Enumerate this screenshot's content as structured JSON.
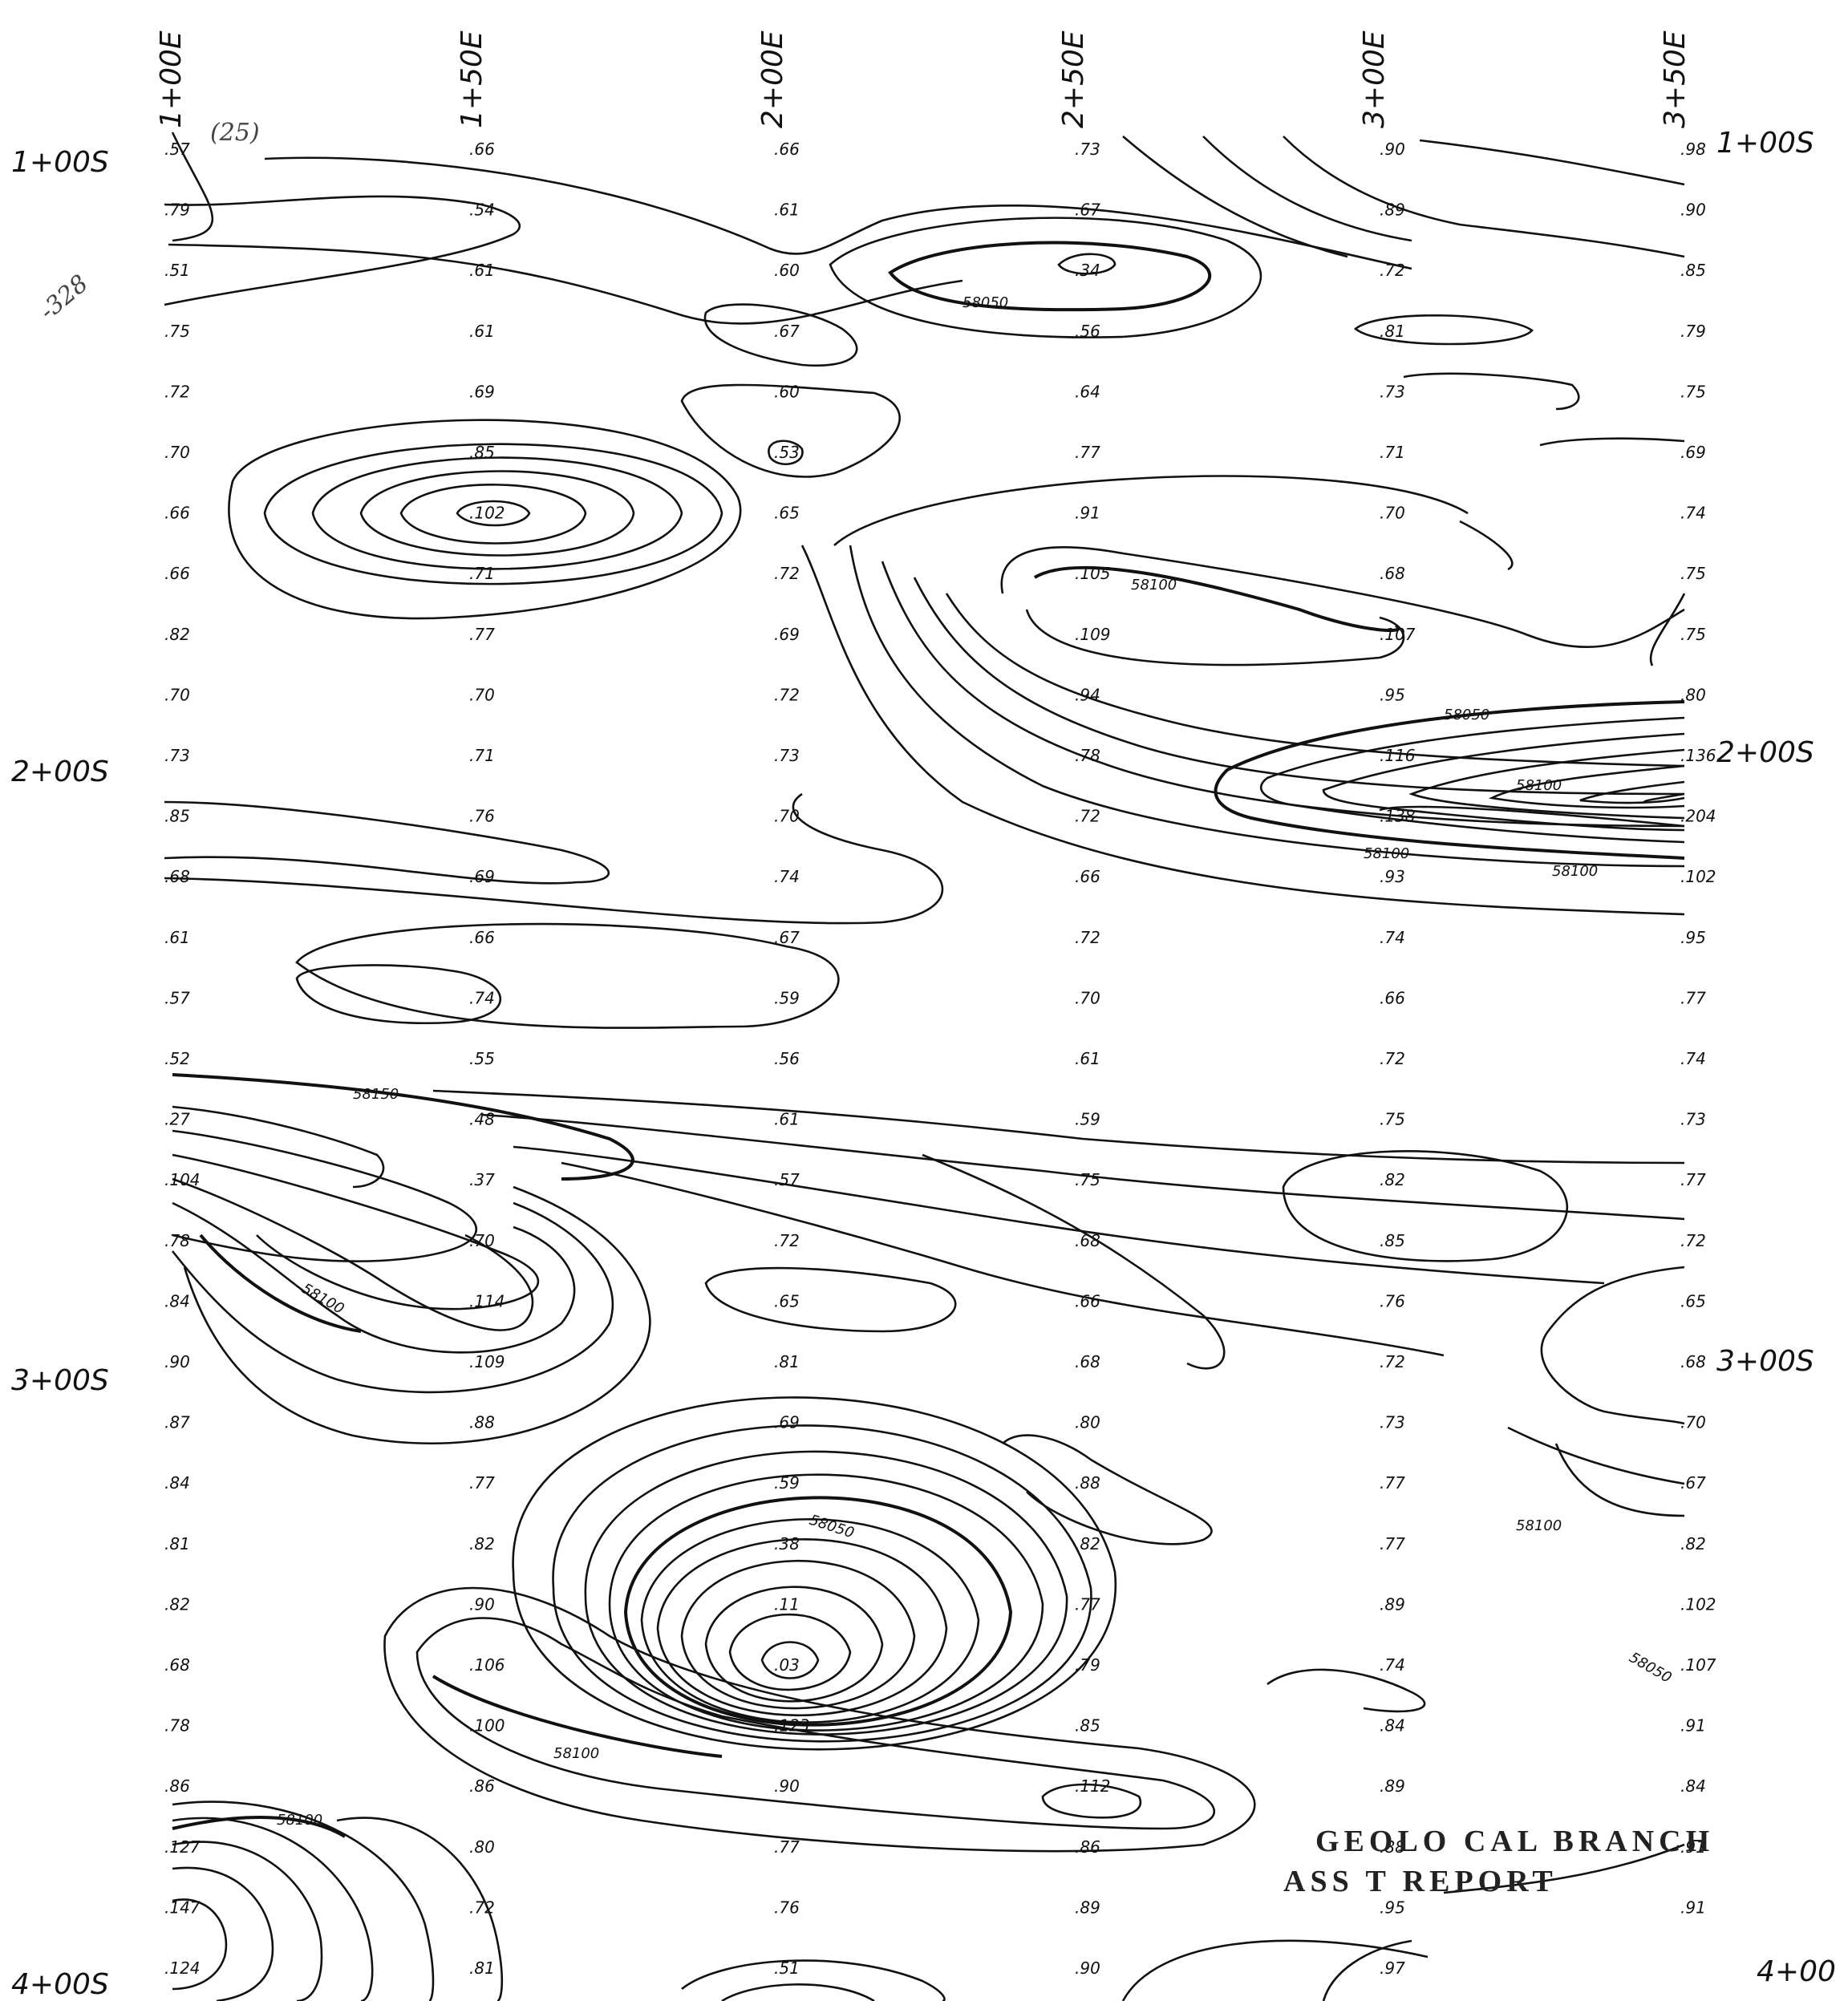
{
  "map": {
    "easting_labels": [
      "1+00E",
      "1+50E",
      "2+00E",
      "2+50E",
      "3+00E",
      "3+50E"
    ],
    "northing_labels_left": [
      "1+00S",
      "2+00S",
      "3+00S",
      "4+00S"
    ],
    "northing_labels_right": [
      "1+00S",
      "2+00S",
      "3+00S",
      "4+00"
    ],
    "handwritten_notes": [
      "(25)",
      "-328"
    ],
    "stamp_lines": [
      "GEOLO  CAL BRANCH",
      "ASS        T REPORT"
    ],
    "contour_labels": [
      "58050",
      "58100",
      "58050",
      "58100",
      "58100",
      "58150",
      "58100",
      "58050",
      "58100",
      "58050",
      "58100",
      "58100",
      "58100"
    ],
    "readings": [
      [
        ".57",
        ".79",
        ".51",
        ".75",
        ".72",
        ".70",
        ".66",
        ".66",
        ".82",
        ".70",
        ".73",
        ".85",
        ".68",
        ".61",
        ".57",
        ".52",
        ".27",
        ".104",
        ".78",
        ".84",
        ".90",
        ".87",
        ".84",
        ".81",
        ".82",
        ".68",
        ".78",
        ".86",
        ".127",
        ".147",
        ".124"
      ],
      [
        ".66",
        ".54",
        ".61",
        ".61",
        ".69",
        ".85",
        ".102",
        ".71",
        ".77",
        ".70",
        ".71",
        ".76",
        ".69",
        ".66",
        ".74",
        ".55",
        ".48",
        ".37",
        ".70",
        ".114",
        ".109",
        ".88",
        ".77",
        ".82",
        ".90",
        ".106",
        ".100",
        ".86",
        ".80",
        ".72",
        ".81"
      ],
      [
        ".66",
        ".61",
        ".60",
        ".67",
        ".60",
        ".53",
        ".65",
        ".72",
        ".69",
        ".72",
        ".73",
        ".70",
        ".74",
        ".67",
        ".59",
        ".56",
        ".61",
        ".57",
        ".72",
        ".65",
        ".81",
        ".69",
        ".59",
        ".38",
        ".11",
        ".03",
        ".123",
        ".90",
        ".77",
        ".76",
        ".51"
      ],
      [
        ".73",
        ".67",
        ".34",
        ".56",
        ".64",
        ".77",
        ".91",
        ".105",
        ".109",
        ".94",
        ".78",
        ".72",
        ".66",
        ".72",
        ".70",
        ".61",
        ".59",
        ".75",
        ".68",
        ".66",
        ".68",
        ".80",
        ".88",
        ".82",
        ".77",
        ".79",
        ".85",
        ".112",
        ".86",
        ".89",
        ".90"
      ],
      [
        ".90",
        ".89",
        ".72",
        ".81",
        ".73",
        ".71",
        ".70",
        ".68",
        ".107",
        ".95",
        ".116",
        ".138",
        ".93",
        ".74",
        ".66",
        ".72",
        ".75",
        ".82",
        ".85",
        ".76",
        ".72",
        ".73",
        ".77",
        ".77",
        ".89",
        ".74",
        ".84",
        ".89",
        ".88",
        ".95",
        ".97"
      ],
      [
        ".98",
        ".90",
        ".85",
        ".79",
        ".75",
        ".69",
        ".74",
        ".75",
        ".75",
        ".80",
        ".136",
        ".204",
        ".102",
        ".95",
        ".77",
        ".74",
        ".73",
        ".77",
        ".72",
        ".65",
        ".68",
        ".70",
        ".67",
        ".82",
        ".102",
        ".107",
        ".91",
        ".84",
        ".91",
        ".91"
      ]
    ]
  }
}
